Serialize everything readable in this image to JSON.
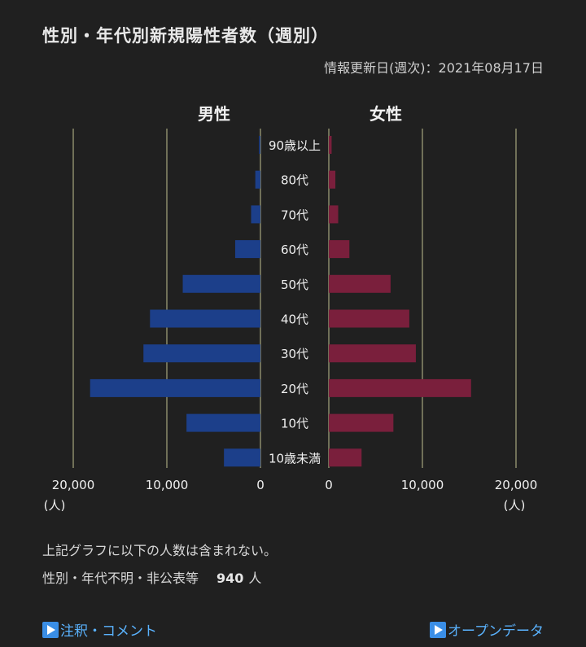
{
  "header": {
    "title": "性別・年代別新規陽性者数（週別）",
    "updated": "情報更新日(週次)：2021年08月17日"
  },
  "chart_data": {
    "type": "bar",
    "orientation": "horizontal-population-pyramid",
    "categories": [
      "90歳以上",
      "80代",
      "70代",
      "60代",
      "50代",
      "40代",
      "30代",
      "20代",
      "10代",
      "10歳未満"
    ],
    "series": [
      {
        "name": "男性",
        "color": "#1c3f8a",
        "values": [
          150,
          550,
          1000,
          2700,
          8300,
          11800,
          12500,
          18200,
          7900,
          3900
        ]
      },
      {
        "name": "女性",
        "color": "#7a1f3c",
        "values": [
          300,
          700,
          1000,
          2200,
          6600,
          8600,
          9300,
          15200,
          6900,
          3500
        ]
      }
    ],
    "xlim": [
      0,
      20000
    ],
    "xticks": [
      "20,000",
      "10,000",
      "0",
      "0",
      "10,000",
      "20,000"
    ],
    "unit": "(人)",
    "grid": true
  },
  "notes": {
    "line1": "上記グラフに以下の人数は含まれない。",
    "line2_label": "性別・年代不明・非公表等",
    "line2_value": "940",
    "line2_unit": "人"
  },
  "links": {
    "notes": "注釈・コメント",
    "opendata": "オープンデータ"
  },
  "colors": {
    "male": "#1c3f8a",
    "female": "#7a1f3c",
    "link": "#5ab3ff"
  }
}
